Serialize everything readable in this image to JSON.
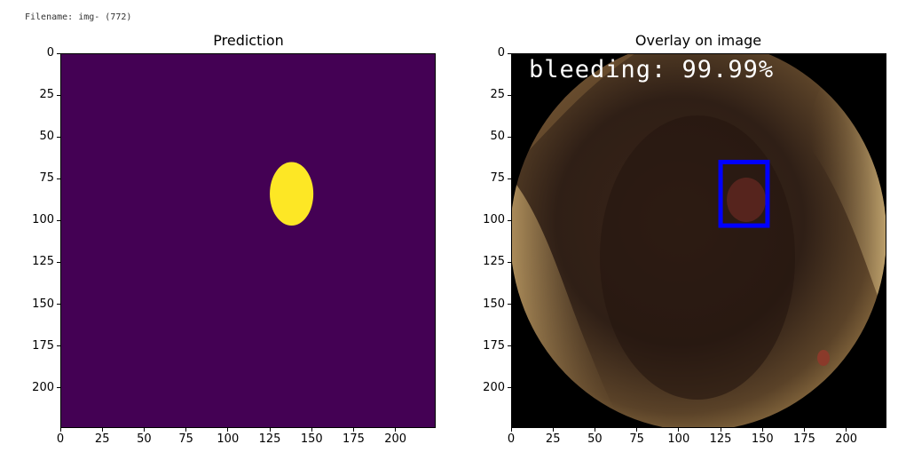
{
  "header": {
    "filename": "Filename: img- (772)"
  },
  "panels": [
    {
      "title": "Prediction"
    },
    {
      "title": "Overlay on image"
    }
  ],
  "axes": {
    "x_ticks": [
      "0",
      "25",
      "50",
      "75",
      "100",
      "125",
      "150",
      "175",
      "200"
    ],
    "y_ticks": [
      "0",
      "25",
      "50",
      "75",
      "100",
      "125",
      "150",
      "175",
      "200"
    ],
    "xlim": [
      0,
      224
    ],
    "ylim": [
      224,
      0
    ]
  },
  "prediction": {
    "background_color": "#440154",
    "mask_color": "#fde725",
    "mask_center": [
      138,
      84
    ],
    "mask_radius": [
      13,
      19
    ]
  },
  "overlay": {
    "label": "bleeding: 99.99%",
    "bbox_color": "#0000ff",
    "bbox_data": {
      "x0": 125,
      "y0": 65,
      "x1": 153,
      "y1": 103
    }
  }
}
